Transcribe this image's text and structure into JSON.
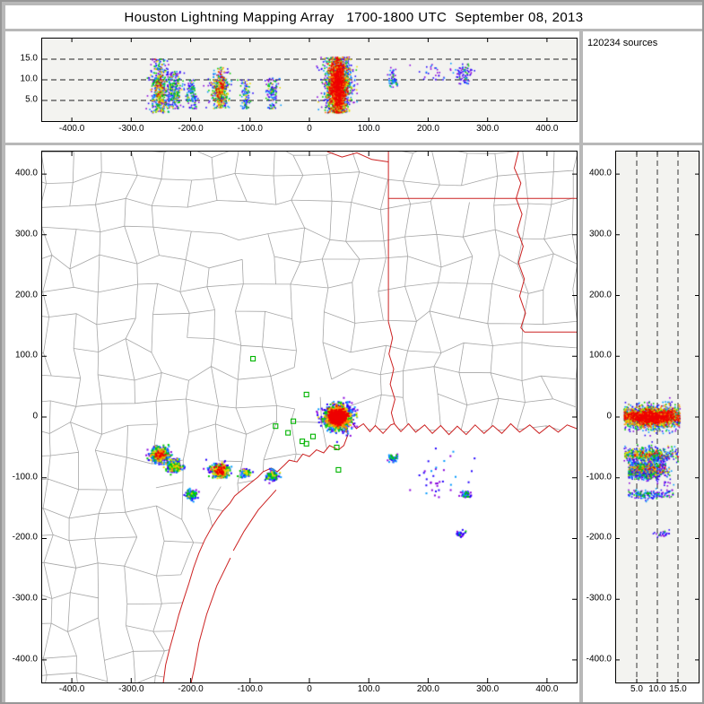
{
  "chart_data": {
    "type": "scatter",
    "title": "Houston Lightning Mapping Array   1700-1800 UTC  September 08, 2013",
    "source_count": 120234,
    "source_count_label": "120234 sources",
    "xlabel": "",
    "ylabel": "",
    "color_scale": [
      "#8800dd",
      "#2200ff",
      "#0099ff",
      "#00cc00",
      "#eedd00",
      "#ff8800",
      "#ee0000"
    ],
    "panels": {
      "ew": {
        "name": "east-west vertical cross-section (altitude km vs east distance km)",
        "xlim": [
          -450,
          450
        ],
        "zlim": [
          0,
          20
        ],
        "x_tick_values": [
          -400,
          -300,
          -200,
          -100,
          0,
          100,
          200,
          300,
          400
        ],
        "x_tick_labels": [
          "-400.0",
          "-300.0",
          "-200.0",
          "-100.0",
          "0",
          "100.0",
          "200.0",
          "300.0",
          "400.0"
        ],
        "z_tick_values": [
          5,
          10,
          15
        ],
        "z_tick_labels": [
          "5.0",
          "10.0",
          "15.0"
        ]
      },
      "plan": {
        "name": "plan view map (north km vs east km)",
        "xlim": [
          -450,
          450
        ],
        "ylim": [
          -437,
          437
        ],
        "y_tick_values": [
          400,
          300,
          200,
          100,
          0,
          -100,
          -200,
          -300,
          -400
        ],
        "y_tick_labels": [
          "400.0",
          "300.0",
          "200.0",
          "100.0",
          "0",
          "-100.0",
          "-200.0",
          "-300.0",
          "-400.0"
        ]
      },
      "ns": {
        "name": "north-south vertical cross-section (north distance km vs altitude km)",
        "zlim": [
          0,
          20
        ],
        "ylim": [
          -437,
          437
        ],
        "x_tick_values": [
          5,
          10,
          15
        ],
        "x_tick_labels": [
          "5.0",
          "10.0",
          "15.0"
        ]
      }
    },
    "storms": [
      {
        "id": "main-houston-storm",
        "cx": 48,
        "cy": 0,
        "sx": 13,
        "sy": 11,
        "zmin": 2,
        "zmax": 15.5,
        "zc": 8.5,
        "n": 2600,
        "weights": [
          8,
          12,
          12,
          16,
          14,
          16,
          22
        ],
        "tight": true
      },
      {
        "id": "sw-storm-a",
        "cx": -252,
        "cy": -62,
        "sx": 9,
        "sy": 7,
        "zmin": 2,
        "zmax": 15,
        "zc": 8,
        "n": 500,
        "weights": [
          16,
          22,
          20,
          20,
          12,
          6,
          4
        ],
        "tight": true
      },
      {
        "id": "sw-storm-b",
        "cx": -228,
        "cy": -80,
        "sx": 7,
        "sy": 5,
        "zmin": 3,
        "zmax": 12,
        "zc": 7.5,
        "n": 260,
        "weights": [
          20,
          26,
          24,
          20,
          8,
          2,
          0
        ],
        "tight": false
      },
      {
        "id": "sw-storm-c",
        "cx": -150,
        "cy": -88,
        "sx": 9,
        "sy": 7,
        "zmin": 3,
        "zmax": 13,
        "zc": 7.5,
        "n": 430,
        "weights": [
          10,
          14,
          18,
          22,
          16,
          12,
          8
        ],
        "tight": true
      },
      {
        "id": "sw-storm-d",
        "cx": -198,
        "cy": -128,
        "sx": 5,
        "sy": 4,
        "zmin": 3,
        "zmax": 10,
        "zc": 6.5,
        "n": 110,
        "weights": [
          20,
          30,
          25,
          18,
          5,
          2,
          0
        ],
        "tight": false
      },
      {
        "id": "sw-storm-e",
        "cx": -108,
        "cy": -92,
        "sx": 4,
        "sy": 3.5,
        "zmin": 3,
        "zmax": 10,
        "zc": 6.5,
        "n": 90,
        "weights": [
          15,
          30,
          30,
          20,
          5,
          0,
          0
        ],
        "tight": false
      },
      {
        "id": "sw-storm-f",
        "cx": -62,
        "cy": -96,
        "sx": 5,
        "sy": 4,
        "zmin": 3,
        "zmax": 10.5,
        "zc": 7,
        "n": 130,
        "weights": [
          25,
          30,
          25,
          15,
          5,
          0,
          0
        ],
        "tight": false
      },
      {
        "id": "east-cell",
        "cx": 140,
        "cy": -68,
        "sx": 4,
        "sy": 3,
        "zmin": 8,
        "zmax": 13,
        "zc": 10.5,
        "n": 55,
        "weights": [
          20,
          35,
          30,
          15,
          0,
          0,
          0
        ],
        "tight": false
      },
      {
        "id": "se-cell-a",
        "cx": 262,
        "cy": -128,
        "sx": 5,
        "sy": 3,
        "zmin": 9,
        "zmax": 14,
        "zc": 11,
        "n": 45,
        "weights": [
          35,
          35,
          20,
          10,
          0,
          0,
          0
        ],
        "tight": false
      },
      {
        "id": "se-cell-b",
        "cx": 255,
        "cy": -192,
        "sx": 4,
        "sy": 3,
        "zmin": 9,
        "zmax": 13,
        "zc": 11,
        "n": 28,
        "weights": [
          45,
          35,
          15,
          5,
          0,
          0,
          0
        ],
        "tight": false
      },
      {
        "id": "east-anvil-debris",
        "cx": 225,
        "cy": -95,
        "sx": 30,
        "sy": 20,
        "zmin": 10,
        "zmax": 14,
        "zc": 12,
        "n": 35,
        "weights": [
          40,
          40,
          15,
          5,
          0,
          0,
          0
        ],
        "tight": false
      }
    ],
    "stations_km": [
      [
        -95,
        96
      ],
      [
        -5,
        37
      ],
      [
        -27,
        -7
      ],
      [
        -57,
        -15
      ],
      [
        -36,
        -26
      ],
      [
        -12,
        -40
      ],
      [
        6,
        -32
      ],
      [
        -5,
        -44
      ],
      [
        46,
        -50
      ],
      [
        49,
        -87
      ]
    ],
    "geo": {
      "coast": [
        [
          -246,
          -437
        ],
        [
          -242,
          -408
        ],
        [
          -235,
          -380
        ],
        [
          -227,
          -352
        ],
        [
          -220,
          -326
        ],
        [
          -211,
          -298
        ],
        [
          -203,
          -274
        ],
        [
          -195,
          -248
        ],
        [
          -186,
          -224
        ],
        [
          -176,
          -202
        ],
        [
          -166,
          -184
        ],
        [
          -154,
          -166
        ],
        [
          -146,
          -155
        ],
        [
          -134,
          -142
        ],
        [
          -126,
          -130
        ],
        [
          -111,
          -118
        ],
        [
          -101,
          -110
        ],
        [
          -87,
          -99
        ],
        [
          -78,
          -90
        ],
        [
          -64,
          -84
        ],
        [
          -54,
          -90
        ],
        [
          -42,
          -79
        ],
        [
          -34,
          -71
        ],
        [
          -21,
          -74
        ],
        [
          -11,
          -61
        ],
        [
          0,
          -65
        ],
        [
          12,
          -54
        ],
        [
          24,
          -59
        ],
        [
          34,
          -47
        ],
        [
          49,
          -54
        ],
        [
          58,
          -47
        ],
        [
          65,
          -29
        ],
        [
          57,
          -12
        ],
        [
          61,
          5
        ],
        [
          71,
          -7
        ],
        [
          79,
          -19
        ],
        [
          91,
          -11
        ],
        [
          102,
          -24
        ],
        [
          111,
          -14
        ],
        [
          124,
          -27
        ],
        [
          137,
          -13
        ],
        [
          143,
          -11
        ],
        [
          154,
          -24
        ],
        [
          167,
          -11
        ],
        [
          179,
          -25
        ],
        [
          194,
          -13
        ],
        [
          207,
          -27
        ],
        [
          221,
          -14
        ],
        [
          235,
          -29
        ],
        [
          249,
          -15
        ],
        [
          264,
          -29
        ],
        [
          279,
          -13
        ],
        [
          294,
          -27
        ],
        [
          309,
          -14
        ],
        [
          324,
          -27
        ],
        [
          339,
          -11
        ],
        [
          354,
          -25
        ],
        [
          371,
          -13
        ],
        [
          387,
          -27
        ],
        [
          404,
          -14
        ],
        [
          419,
          -25
        ],
        [
          434,
          -13
        ],
        [
          450,
          -19
        ]
      ],
      "islands": [
        [
          [
            -56,
            -120
          ],
          [
            -86,
            -153
          ],
          [
            -110,
            -188
          ],
          [
            -128,
            -220
          ]
        ],
        [
          [
            -133,
            -232
          ],
          [
            -156,
            -278
          ],
          [
            -173,
            -325
          ],
          [
            -186,
            -372
          ],
          [
            -194,
            -415
          ],
          [
            -199,
            -437
          ]
        ]
      ],
      "state_lines": [
        [
          [
            133,
            437
          ],
          [
            133,
            157
          ]
        ],
        [
          [
            133,
            360
          ],
          [
            450,
            360
          ]
        ],
        [
          [
            133,
            157
          ],
          [
            140,
            130
          ],
          [
            134,
            104
          ],
          [
            142,
            79
          ],
          [
            136,
            54
          ],
          [
            144,
            29
          ],
          [
            138,
            7
          ],
          [
            143,
            -11
          ]
        ],
        [
          [
            352,
            437
          ],
          [
            345,
            410
          ],
          [
            356,
            385
          ],
          [
            348,
            360
          ],
          [
            358,
            334
          ],
          [
            350,
            307
          ],
          [
            360,
            281
          ],
          [
            352,
            254
          ],
          [
            362,
            227
          ],
          [
            354,
            199
          ],
          [
            364,
            171
          ],
          [
            356,
            147
          ],
          [
            362,
            140
          ]
        ],
        [
          [
            362,
            140
          ],
          [
            450,
            140
          ]
        ],
        [
          [
            30,
            437
          ],
          [
            55,
            428
          ],
          [
            80,
            435
          ],
          [
            105,
            424
          ],
          [
            133,
            420
          ]
        ]
      ]
    }
  }
}
